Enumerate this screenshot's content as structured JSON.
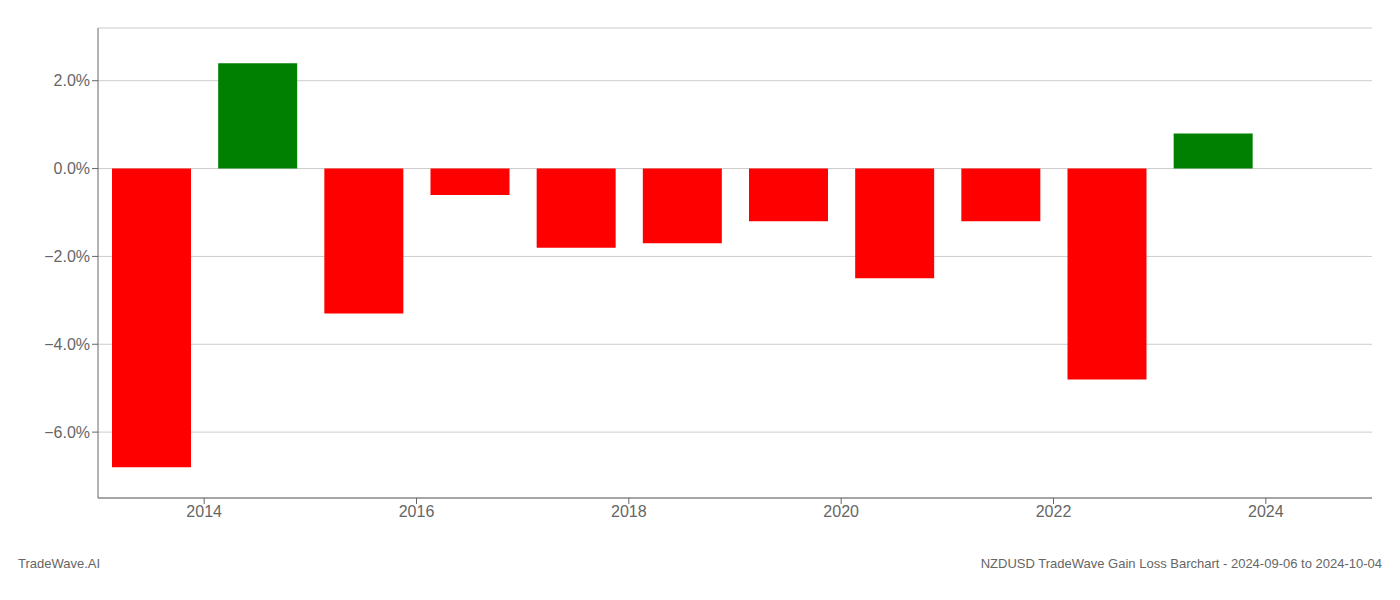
{
  "chart_data": {
    "type": "bar",
    "title": "NZDUSD TradeWave Gain Loss Barchart - 2024-09-06 to 2024-10-04",
    "annotations": [
      "TradeWave.AI"
    ],
    "x": [
      2013.5,
      2014.5,
      2015.5,
      2016.5,
      2017.5,
      2018.5,
      2019.5,
      2020.5,
      2021.5,
      2022.5,
      2023.5
    ],
    "values": [
      -6.8,
      2.4,
      -3.3,
      -0.6,
      -1.8,
      -1.7,
      -1.2,
      -2.5,
      -1.2,
      -4.8,
      0.8
    ],
    "colors": [
      "#ff0000",
      "#008000",
      "#ff0000",
      "#ff0000",
      "#ff0000",
      "#ff0000",
      "#ff0000",
      "#ff0000",
      "#ff0000",
      "#ff0000",
      "#008000"
    ],
    "xlim": [
      2013.0,
      2025.0
    ],
    "xticks": [
      2014,
      2016,
      2018,
      2020,
      2022,
      2024
    ],
    "ylim": [
      -7.5,
      3.2
    ],
    "yticks": [
      {
        "value": -6.0,
        "label": "−6.0%"
      },
      {
        "value": -4.0,
        "label": "−4.0%"
      },
      {
        "value": -2.0,
        "label": "−2.0%"
      },
      {
        "value": 0.0,
        "label": "0.0%"
      },
      {
        "value": 2.0,
        "label": "2.0%"
      }
    ],
    "grid": true
  }
}
